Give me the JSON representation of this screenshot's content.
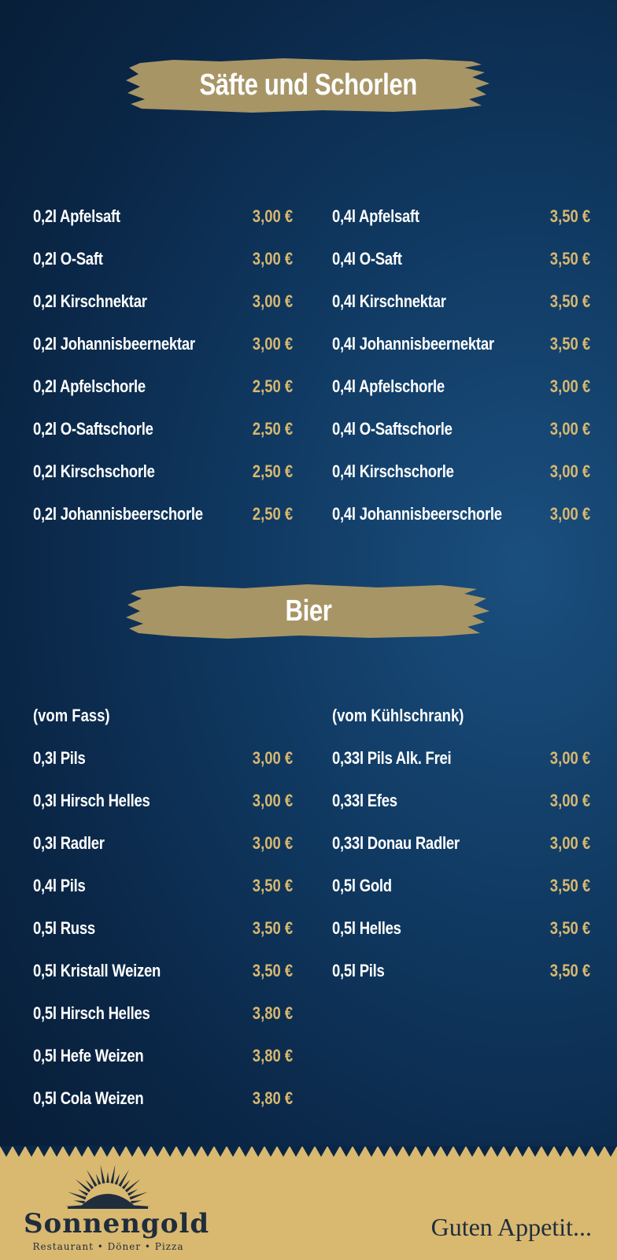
{
  "sections": {
    "saefte": {
      "title": "Säfte und Schorlen",
      "left": [
        {
          "name": "0,2l Apfelsaft",
          "price": "3,00 €"
        },
        {
          "name": "0,2l O-Saft",
          "price": "3,00 €"
        },
        {
          "name": "0,2l Kirschnektar",
          "price": "3,00 €"
        },
        {
          "name": "0,2l Johannisbeernektar",
          "price": "3,00 €"
        },
        {
          "name": "0,2l Apfelschorle",
          "price": "2,50 €"
        },
        {
          "name": "0,2l O-Saftschorle",
          "price": "2,50 €"
        },
        {
          "name": "0,2l Kirschschorle",
          "price": "2,50 €"
        },
        {
          "name": "0,2l Johannisbeerschorle",
          "price": "2,50 €"
        }
      ],
      "right": [
        {
          "name": "0,4l Apfelsaft",
          "price": "3,50 €"
        },
        {
          "name": "0,4l O-Saft",
          "price": "3,50 €"
        },
        {
          "name": "0,4l Kirschnektar",
          "price": "3,50 €"
        },
        {
          "name": "0,4l Johannisbeernektar",
          "price": "3,50 €"
        },
        {
          "name": "0,4l Apfelschorle",
          "price": "3,00 €"
        },
        {
          "name": "0,4l O-Saftschorle",
          "price": "3,00 €"
        },
        {
          "name": "0,4l Kirschschorle",
          "price": "3,00 €"
        },
        {
          "name": "0,4l Johannisbeerschorle",
          "price": "3,00 €"
        }
      ]
    },
    "bier": {
      "title": "Bier",
      "left_heading": "(vom Fass)",
      "right_heading": "(vom Kühlschrank)",
      "left": [
        {
          "name": "0,3l Pils",
          "price": "3,00 €"
        },
        {
          "name": "0,3l Hirsch Helles",
          "price": "3,00 €"
        },
        {
          "name": "0,3l Radler",
          "price": "3,00 €"
        },
        {
          "name": "0,4l Pils",
          "price": "3,50 €"
        },
        {
          "name": "0,5l Russ",
          "price": "3,50 €"
        },
        {
          "name": "0,5l Kristall Weizen",
          "price": "3,50 €"
        },
        {
          "name": "0,5l Hirsch Helles",
          "price": "3,80 €"
        },
        {
          "name": "0,5l Hefe Weizen",
          "price": "3,80 €"
        },
        {
          "name": "0,5l Cola Weizen",
          "price": "3,80 €"
        }
      ],
      "right": [
        {
          "name": "0,33l Pils Alk. Frei",
          "price": "3,00 €"
        },
        {
          "name": "0,33l Efes",
          "price": "3,00 €"
        },
        {
          "name": "0,33l Donau Radler",
          "price": "3,00 €"
        },
        {
          "name": "0,5l Gold",
          "price": "3,50 €"
        },
        {
          "name": "0,5l Helles",
          "price": "3,50 €"
        },
        {
          "name": "0,5l Pils",
          "price": "3,50 €"
        }
      ]
    }
  },
  "footer": {
    "brand_name": "Sonnengold",
    "brand_tagline": "Restaurant • Döner • Pizza",
    "slogan": "Guten Appetit..."
  },
  "colors": {
    "background": "#0a2646",
    "banner": "#a89566",
    "price": "#d8b870",
    "footer": "#d9b870",
    "footer_text": "#1f2d3d"
  },
  "icons": {
    "logo": "sun-rays-icon"
  }
}
